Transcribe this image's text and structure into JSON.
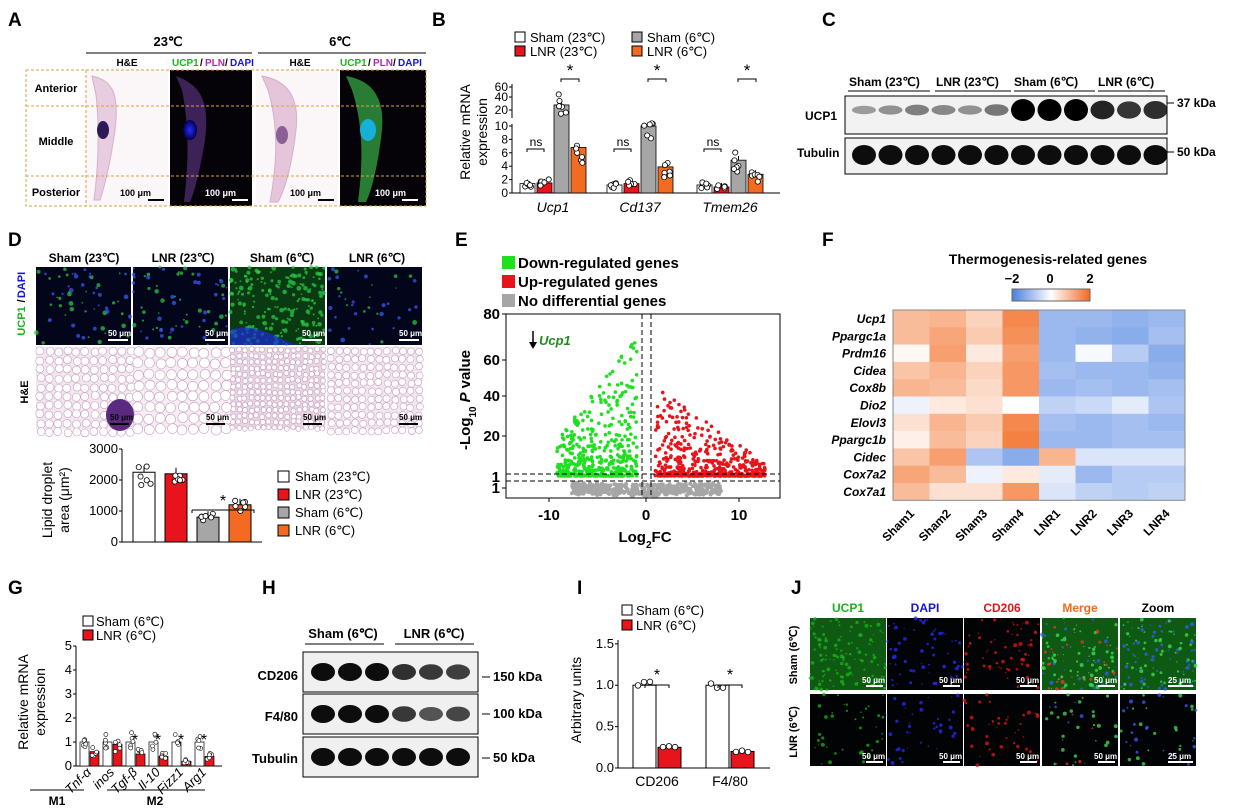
{
  "panel_labels": [
    "A",
    "B",
    "C",
    "D",
    "E",
    "F",
    "G",
    "H",
    "I",
    "J"
  ],
  "A": {
    "conditions": [
      "23℃",
      "6℃"
    ],
    "stains": [
      "H&E",
      "UCP1",
      "PLN",
      "DAPI"
    ],
    "regions": [
      "Anterior",
      "Middle",
      "Posterior"
    ],
    "scale": "100 μm"
  },
  "B": {
    "legend": [
      "Sham (23℃)",
      "LNR (23℃)",
      "Sham (6℃)",
      "LNR (6℃)"
    ],
    "ylabel": [
      "Relative mRNA",
      "expression"
    ],
    "yticks_top": [
      "60",
      "40",
      "20"
    ],
    "yticks_bottom": [
      "10",
      "8",
      "6",
      "4",
      "2",
      "0"
    ],
    "genes": [
      "Ucp1",
      "Cd137",
      "Tmem26"
    ],
    "sig": [
      "ns",
      "*"
    ],
    "colors": {
      "sham23": "#ffffff",
      "lnr23": "#e8141c",
      "sham6": "#a6a6a6",
      "lnr6": "#f26b21"
    }
  },
  "C": {
    "groups": [
      "Sham (23℃)",
      "LNR (23℃)",
      "Sham (6℃)",
      "LNR (6℃)"
    ],
    "rows": [
      "UCP1",
      "Tubulin"
    ],
    "sizes": [
      "37 kDa",
      "50 kDa"
    ]
  },
  "D": {
    "groups": [
      "Sham (23℃)",
      "LNR (23℃)",
      "Sham (6℃)",
      "LNR (6℃)"
    ],
    "row_labels": [
      "UCP1",
      "DAPI",
      "H&E"
    ],
    "scale": "50 μm",
    "ylabel": [
      "Lipid droplet",
      "area (μm²)"
    ],
    "yticks": [
      "3000",
      "2000",
      "1000",
      "0"
    ],
    "legend": [
      "Sham (23℃)",
      "LNR (23℃)",
      "Sham (6℃)",
      "LNR (6℃)"
    ],
    "sig": "*"
  },
  "E": {
    "legend": [
      "Down-regulated genes",
      "Up-regulated genes",
      "No differential genes"
    ],
    "ylabel_prefix": "-Log",
    "ylabel_sub": "10",
    "ylabel_p": "P",
    "ylabel_suffix": "value",
    "xlabel_prefix": "Log",
    "xlabel_sub": "2",
    "xlabel_suffix": "FC",
    "yticks": [
      "80",
      "60",
      "40",
      "20",
      "1"
    ],
    "xticks": [
      "-10",
      "0",
      "10"
    ],
    "annotation": "Ucp1"
  },
  "F": {
    "title": "Thermogenesis-related genes",
    "scale": [
      "−2",
      "0",
      "2"
    ],
    "genes": [
      "Ucp1",
      "Ppargc1a",
      "Prdm16",
      "Cidea",
      "Cox8b",
      "Dio2",
      "Elovl3",
      "Ppargc1b",
      "Cidec",
      "Cox7a2",
      "Cox7a1"
    ],
    "samples": [
      "Sham1",
      "Sham2",
      "Sham3",
      "Sham4",
      "LNR1",
      "LNR2",
      "LNR3",
      "LNR4"
    ],
    "values": [
      [
        0.9,
        1.0,
        0.6,
        1.6,
        -1.1,
        -1.1,
        -1.2,
        -1.1
      ],
      [
        0.9,
        1.2,
        0.7,
        1.5,
        -1.1,
        -1.2,
        -1.3,
        -1.0
      ],
      [
        0.1,
        1.3,
        0.3,
        1.3,
        -1.1,
        -0.1,
        -0.8,
        -1.3
      ],
      [
        0.8,
        1.0,
        0.6,
        1.4,
        -1.0,
        -1.1,
        -1.1,
        -1.2
      ],
      [
        1.0,
        0.9,
        0.5,
        1.4,
        -1.1,
        -1.0,
        -1.1,
        -1.0
      ],
      [
        -0.2,
        0.3,
        0.4,
        0.0,
        -0.7,
        -0.6,
        -0.3,
        -0.9
      ],
      [
        0.4,
        1.0,
        0.7,
        1.6,
        -1.0,
        -1.1,
        -1.0,
        -1.1
      ],
      [
        0.2,
        0.9,
        0.6,
        1.7,
        -1.1,
        -1.1,
        -1.0,
        -1.0
      ],
      [
        0.8,
        1.3,
        -0.9,
        -1.3,
        1.0,
        -0.4,
        -0.4,
        -0.4
      ],
      [
        1.2,
        0.9,
        -0.2,
        0.3,
        -0.3,
        -1.1,
        -0.8,
        -0.8
      ],
      [
        0.9,
        0.4,
        0.4,
        1.4,
        -0.4,
        -0.7,
        -0.8,
        -0.7
      ]
    ]
  },
  "G": {
    "legend": [
      "Sham (6℃)",
      "LNR (6℃)"
    ],
    "ylabel": [
      "Relative mRNA",
      "expression"
    ],
    "yticks": [
      "5",
      "4",
      "3",
      "2",
      "1",
      "0"
    ],
    "genes": [
      "Tnf-α",
      "inos",
      "Tgf-β",
      "Il-10",
      "Fizz1",
      "Arg1"
    ],
    "groups": [
      "M1",
      "M2"
    ],
    "sig": "*"
  },
  "H": {
    "group_labels": [
      "Sham (6℃)",
      "LNR (6℃)"
    ],
    "rows": [
      "CD206",
      "F4/80",
      "Tubulin"
    ],
    "sizes": [
      "150 kDa",
      "100 kDa",
      "50 kDa"
    ]
  },
  "I": {
    "legend": [
      "Sham (6℃)",
      "LNR (6℃)"
    ],
    "ylabel": "Arbitrary units",
    "yticks": [
      "1.5",
      "1.0",
      "0.5",
      "0.0"
    ],
    "categories": [
      "CD206",
      "F4/80"
    ],
    "sig": "*"
  },
  "J": {
    "columns": [
      "UCP1",
      "DAPI",
      "CD206",
      "Merge",
      "Zoom"
    ],
    "col_colors": [
      "#1db31d",
      "#1515d8",
      "#e8141c",
      "#f26b21",
      "#000000"
    ],
    "rows": [
      "Sham (6℃)",
      "LNR (6℃)"
    ],
    "scale": "50 μm",
    "zoom_scale": "25 μm"
  },
  "chart_data": [
    {
      "type": "bar",
      "panel": "B",
      "categories": [
        "Ucp1",
        "Cd137",
        "Tmem26"
      ],
      "series": [
        {
          "name": "Sham (23℃)",
          "values": [
            1.4,
            1.2,
            1.2
          ]
        },
        {
          "name": "LNR (23℃)",
          "values": [
            1.5,
            1.4,
            0.9
          ]
        },
        {
          "name": "Sham (6℃)",
          "values": [
            37,
            10,
            4.9
          ]
        },
        {
          "name": "LNR (6℃)",
          "values": [
            6.8,
            3.9,
            2.8
          ]
        }
      ]
    },
    {
      "type": "bar",
      "panel": "D",
      "categories": [
        "Sham (23℃)",
        "LNR (23℃)",
        "Sham (6℃)",
        "LNR (6℃)"
      ],
      "values": [
        2250,
        2200,
        800,
        1200
      ],
      "ylim": [
        0,
        3000
      ]
    },
    {
      "type": "bar",
      "panel": "G",
      "categories": [
        "Tnf-α",
        "inos",
        "Tgf-β",
        "Il-10",
        "Fizz1",
        "Arg1"
      ],
      "series": [
        {
          "name": "Sham (6℃)",
          "values": [
            1.0,
            1.0,
            1.0,
            1.0,
            1.0,
            1.0
          ]
        },
        {
          "name": "LNR (6℃)",
          "values": [
            0.6,
            0.9,
            0.5,
            0.4,
            0.2,
            0.4
          ]
        }
      ],
      "ylim": [
        0,
        5
      ]
    },
    {
      "type": "bar",
      "panel": "I",
      "categories": [
        "CD206",
        "F4/80"
      ],
      "series": [
        {
          "name": "Sham (6℃)",
          "values": [
            1.0,
            1.0
          ]
        },
        {
          "name": "LNR (6℃)",
          "values": [
            0.25,
            0.2
          ]
        }
      ],
      "ylim": [
        0,
        1.5
      ]
    },
    {
      "type": "scatter",
      "panel": "E",
      "xlim": [
        -14,
        14
      ],
      "ylim": [
        0,
        80
      ]
    },
    {
      "type": "heatmap",
      "panel": "F"
    }
  ]
}
